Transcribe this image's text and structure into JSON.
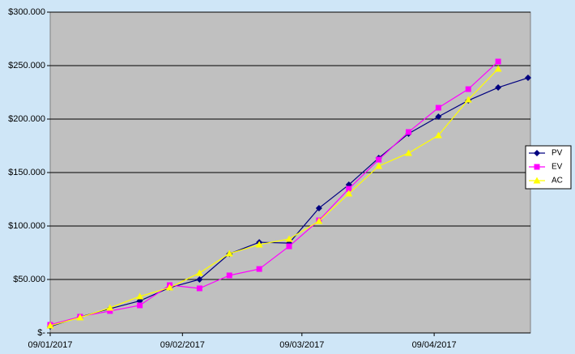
{
  "chart_data": {
    "type": "line",
    "x": [
      "09/01/2017",
      "16/01/2017",
      "23/01/2017",
      "30/01/2017",
      "06/02/2017",
      "13/02/2017",
      "20/02/2017",
      "27/02/2017",
      "06/03/2017",
      "13/03/2017",
      "20/03/2017",
      "27/03/2017",
      "03/04/2017",
      "10/04/2017",
      "17/04/2017",
      "24/04/2017",
      "01/05/2017"
    ],
    "series": [
      {
        "name": "PV",
        "color": "#000080",
        "marker": "diamond",
        "values": [
          6000,
          15000,
          22700,
          30000,
          42400,
          50000,
          74000,
          84800,
          84000,
          116700,
          138600,
          163600,
          186400,
          202300,
          217400,
          229500,
          238600
        ]
      },
      {
        "name": "EV",
        "color": "#ff00ff",
        "marker": "square",
        "values": [
          7600,
          15200,
          20500,
          25800,
          44700,
          41700,
          53800,
          59800,
          81000,
          105300,
          134800,
          162100,
          187900,
          210600,
          228000,
          253800,
          null
        ]
      },
      {
        "name": "AC",
        "color": "#ffff00",
        "marker": "triangle",
        "values": [
          6800,
          14400,
          23500,
          34100,
          42400,
          56100,
          74200,
          82600,
          87900,
          104500,
          130300,
          156100,
          168200,
          184800,
          218200,
          247000,
          null
        ]
      }
    ],
    "xlim": [
      "09/01/2017",
      "01/05/2017"
    ],
    "xticks": [
      "09/01/2017",
      "09/02/2017",
      "09/03/2017",
      "09/04/2017"
    ],
    "ylim": [
      0,
      300000
    ],
    "yticks": [
      {
        "value": 0,
        "label": "$-"
      },
      {
        "value": 50000,
        "label": "$50.000"
      },
      {
        "value": 100000,
        "label": "$100.000"
      },
      {
        "value": 150000,
        "label": "$150.000"
      },
      {
        "value": 200000,
        "label": "$200.000"
      },
      {
        "value": 250000,
        "label": "$250.000"
      },
      {
        "value": 300000,
        "label": "$300.000"
      }
    ],
    "grid": true,
    "legend": "right"
  }
}
